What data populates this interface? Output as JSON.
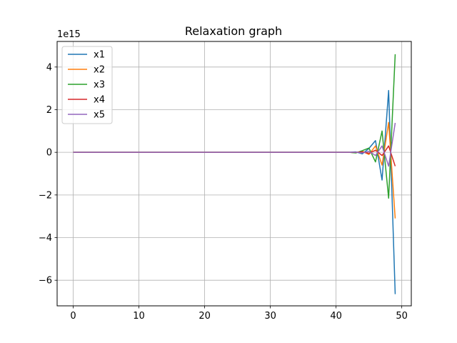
{
  "chart_data": {
    "type": "line",
    "title": "Relaxation graph",
    "xlabel": "",
    "ylabel": "",
    "y_offset_text": "1e15",
    "xlim": [
      -2.45,
      51.45
    ],
    "ylim": [
      -7.2,
      5.2
    ],
    "x_ticks": [
      0,
      10,
      20,
      30,
      40,
      50
    ],
    "x_tick_labels": [
      "0",
      "10",
      "20",
      "30",
      "40",
      "50"
    ],
    "y_ticks": [
      -6,
      -4,
      -2,
      0,
      2,
      4
    ],
    "y_tick_labels": [
      "−6",
      "−4",
      "−2",
      "0",
      "2",
      "4"
    ],
    "grid": true,
    "legend_position": "upper-left",
    "x": [
      0,
      1,
      2,
      3,
      4,
      5,
      6,
      7,
      8,
      9,
      10,
      11,
      12,
      13,
      14,
      15,
      16,
      17,
      18,
      19,
      20,
      21,
      22,
      23,
      24,
      25,
      26,
      27,
      28,
      29,
      30,
      31,
      32,
      33,
      34,
      35,
      36,
      37,
      38,
      39,
      40,
      41,
      42,
      43,
      44,
      45,
      46,
      47,
      48,
      49
    ],
    "series": [
      {
        "name": "x1",
        "color": "#1f77b4",
        "values": [
          0,
          0,
          0,
          0,
          0,
          0,
          0,
          0,
          0,
          0,
          0,
          0,
          0,
          0,
          0,
          0,
          0,
          0,
          0,
          0,
          0,
          0,
          0,
          0,
          0,
          0,
          0,
          0,
          0,
          0,
          0,
          0,
          0,
          0,
          0,
          0,
          0,
          0,
          0,
          0,
          0,
          0,
          0,
          0.02,
          -0.07,
          0.18,
          0.55,
          -1.3,
          2.9,
          -6.65
        ]
      },
      {
        "name": "x2",
        "color": "#ff7f0e",
        "values": [
          0,
          0,
          0,
          0,
          0,
          0,
          0,
          0,
          0,
          0,
          0,
          0,
          0,
          0,
          0,
          0,
          0,
          0,
          0,
          0,
          0,
          0,
          0,
          0,
          0,
          0,
          0,
          0,
          0,
          0,
          0,
          0,
          0,
          0,
          0,
          0,
          0,
          0,
          0,
          0,
          0,
          0,
          0,
          -0.02,
          0.05,
          -0.1,
          0.3,
          -0.6,
          1.4,
          -3.1
        ]
      },
      {
        "name": "x3",
        "color": "#2ca02c",
        "values": [
          0,
          0,
          0,
          0,
          0,
          0,
          0,
          0,
          0,
          0,
          0,
          0,
          0,
          0,
          0,
          0,
          0,
          0,
          0,
          0,
          0,
          0,
          0,
          0,
          0,
          0,
          0,
          0,
          0,
          0,
          0,
          0,
          0,
          0,
          0,
          0,
          0,
          0,
          0,
          0,
          0,
          0,
          0,
          -0.03,
          0.08,
          0.2,
          -0.45,
          1.0,
          -2.15,
          4.6
        ]
      },
      {
        "name": "x4",
        "color": "#d62728",
        "values": [
          0,
          0,
          0,
          0,
          0,
          0,
          0,
          0,
          0,
          0,
          0,
          0,
          0,
          0,
          0,
          0,
          0,
          0,
          0,
          0,
          0,
          0,
          0,
          0,
          0,
          0,
          0,
          0,
          0,
          0,
          0,
          0,
          0,
          0,
          0,
          0,
          0,
          0,
          0,
          0,
          0,
          0,
          0,
          0.0,
          0.02,
          -0.05,
          0.1,
          -0.15,
          0.3,
          -0.65
        ]
      },
      {
        "name": "x5",
        "color": "#9467bd",
        "values": [
          0,
          0,
          0,
          0,
          0,
          0,
          0,
          0,
          0,
          0,
          0,
          0,
          0,
          0,
          0,
          0,
          0,
          0,
          0,
          0,
          0,
          0,
          0,
          0,
          0,
          0,
          0,
          0,
          0,
          0,
          0,
          0,
          0,
          0,
          0,
          0,
          0,
          0,
          0,
          0,
          0,
          0,
          0,
          0.01,
          -0.03,
          0.05,
          -0.15,
          0.3,
          -0.65,
          1.38
        ]
      }
    ]
  }
}
